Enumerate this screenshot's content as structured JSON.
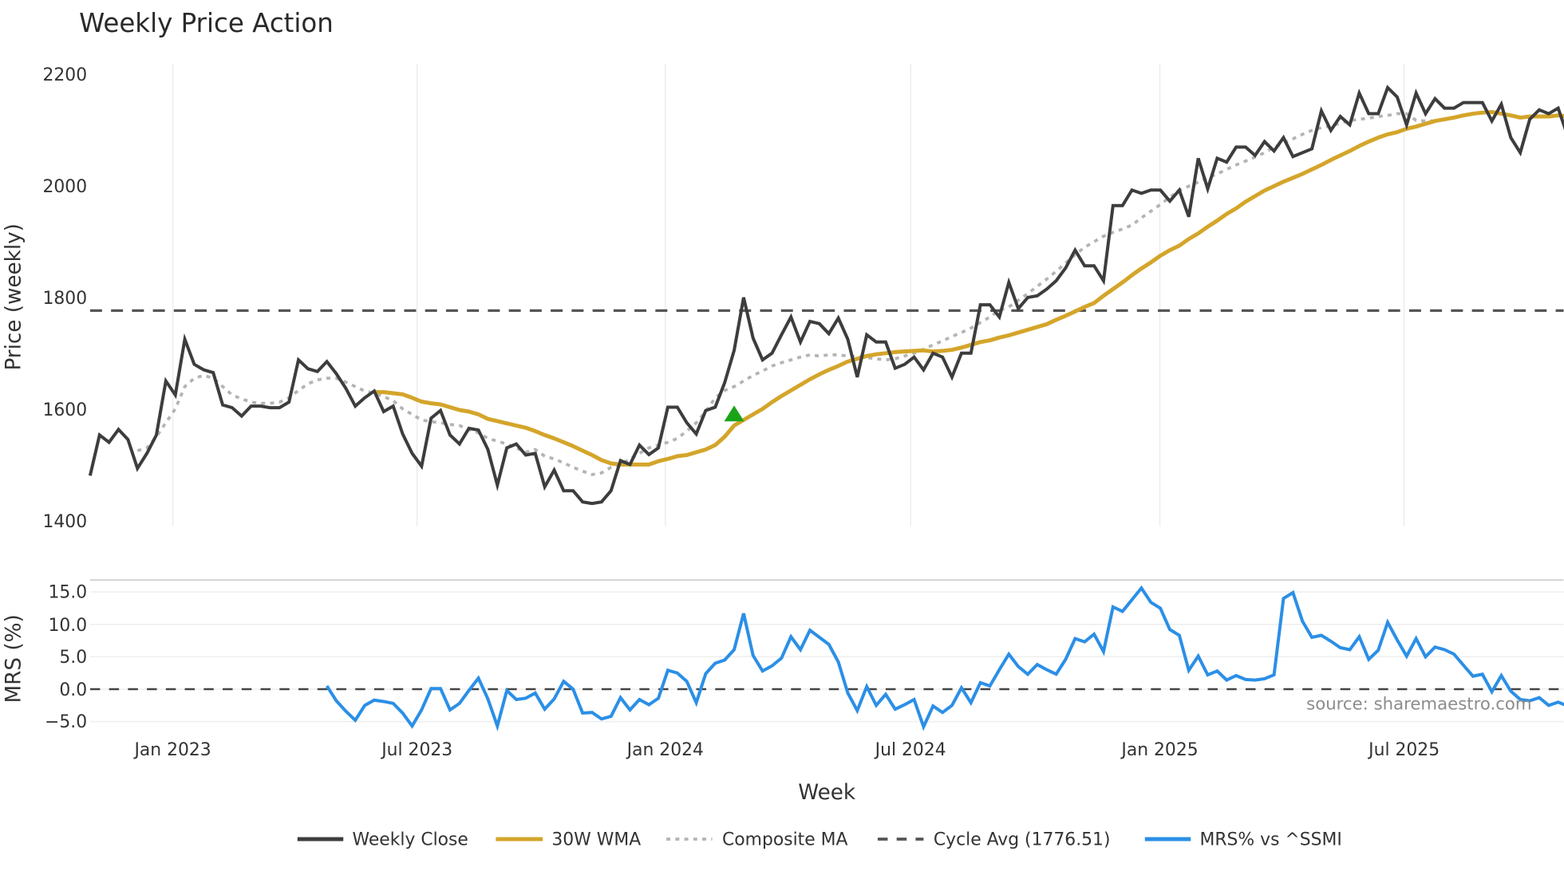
{
  "title": "Weekly Price Action",
  "colors": {
    "close": "#3d3d3d",
    "wma": "#d4a52a",
    "composite": "#b4b4b4",
    "cycle": "#555555",
    "mrs": "#2b8fe6",
    "signal": "#1aa31a",
    "grid": "#ececf2"
  },
  "top_panel": {
    "ylabel": "Price (weekly)",
    "yticks": [
      "2200",
      "2000",
      "1800",
      "1600",
      "1400"
    ]
  },
  "bottom_panel": {
    "ylabel": "MRS (%)",
    "yticks": [
      "15.0",
      "10.0",
      "5.0",
      "0.0",
      "−5.0"
    ]
  },
  "xaxis": {
    "label": "Week",
    "ticks": [
      "Jan 2023",
      "Jul 2023",
      "Jan 2024",
      "Jul 2024",
      "Jan 2025",
      "Jul 2025"
    ]
  },
  "source": "source: sharemaestro.com",
  "legend": [
    {
      "label": "Weekly Close",
      "style": "solid",
      "color": "#3d3d3d"
    },
    {
      "label": "30W WMA",
      "style": "solid",
      "color": "#d4a52a"
    },
    {
      "label": "Composite MA",
      "style": "dotted",
      "color": "#b4b4b4"
    },
    {
      "label": "Cycle Avg (1776.51)",
      "style": "dashed",
      "color": "#555555"
    },
    {
      "label": "MRS% vs ^SSMI",
      "style": "solid",
      "color": "#2b8fe6"
    }
  ],
  "chart_data": [
    {
      "type": "line",
      "title": "Weekly Price Action",
      "xlabel": "Week",
      "ylabel": "Price (weekly)",
      "ylim": [
        1400,
        2200
      ],
      "grid": "vertical",
      "x_ticks": [
        "Jan 2023",
        "Jul 2023",
        "Jan 2024",
        "Jul 2024",
        "Jan 2025",
        "Jul 2025"
      ],
      "x_start": "Nov 2022",
      "x_end": "Oct 2025",
      "series": [
        {
          "name": "Weekly Close",
          "values": [
            1480,
            1553,
            1540,
            1563,
            1545,
            1493,
            1520,
            1553,
            1650,
            1625,
            1725,
            1680,
            1670,
            1665,
            1607,
            1602,
            1587,
            1605,
            1605,
            1602,
            1602,
            1612,
            1688,
            1672,
            1667,
            1685,
            1663,
            1637,
            1605,
            1620,
            1632,
            1595,
            1605,
            1555,
            1520,
            1497,
            1583,
            1597,
            1553,
            1537,
            1565,
            1562,
            1527,
            1463,
            1530,
            1537,
            1517,
            1520,
            1460,
            1490,
            1453,
            1453,
            1433,
            1430,
            1433,
            1453,
            1507,
            1500,
            1535,
            1518,
            1530,
            1603,
            1603,
            1575,
            1555,
            1597,
            1603,
            1647,
            1705,
            1800,
            1727,
            1688,
            1700,
            1733,
            1765,
            1720,
            1757,
            1753,
            1735,
            1763,
            1725,
            1657,
            1733,
            1720,
            1720,
            1673,
            1680,
            1693,
            1670,
            1700,
            1693,
            1657,
            1700,
            1700,
            1787,
            1787,
            1765,
            1827,
            1780,
            1800,
            1803,
            1815,
            1830,
            1853,
            1885,
            1857,
            1857,
            1830,
            1965,
            1965,
            1993,
            1987,
            1993,
            1993,
            1973,
            1993,
            1945,
            2050,
            1995,
            2050,
            2043,
            2070,
            2070,
            2055,
            2080,
            2063,
            2087,
            2053,
            2060,
            2067,
            2135,
            2100,
            2125,
            2110,
            2167,
            2130,
            2130,
            2177,
            2160,
            2110,
            2167,
            2130,
            2157,
            2140,
            2140,
            2150,
            2150,
            2150,
            2117,
            2147,
            2087,
            2060,
            2120,
            2137,
            2130,
            2140,
            2090
          ]
        },
        {
          "name": "30W WMA",
          "start_index": 30,
          "values": [
            1630,
            1630,
            1628,
            1626,
            1620,
            1613,
            1610,
            1608,
            1603,
            1598,
            1595,
            1590,
            1582,
            1578,
            1574,
            1570,
            1566,
            1560,
            1553,
            1547,
            1540,
            1533,
            1525,
            1517,
            1508,
            1502,
            1500,
            1500,
            1500,
            1500,
            1506,
            1510,
            1515,
            1517,
            1522,
            1527,
            1535,
            1550,
            1570,
            1580,
            1590,
            1600,
            1612,
            1623,
            1633,
            1643,
            1653,
            1662,
            1670,
            1677,
            1685,
            1690,
            1695,
            1698,
            1700,
            1702,
            1703,
            1704,
            1705,
            1703,
            1704,
            1706,
            1710,
            1715,
            1720,
            1723,
            1728,
            1732,
            1737,
            1742,
            1747,
            1752,
            1760,
            1767,
            1775,
            1783,
            1790,
            1803,
            1815,
            1827,
            1840,
            1852,
            1863,
            1875,
            1885,
            1893,
            1905,
            1915,
            1927,
            1938,
            1950,
            1960,
            1972,
            1982,
            1992,
            2000,
            2008,
            2015,
            2022,
            2030,
            2038,
            2047,
            2055,
            2063,
            2072,
            2080,
            2087,
            2093,
            2097,
            2103,
            2107,
            2112,
            2117,
            2120,
            2123,
            2127,
            2130,
            2132,
            2133,
            2130,
            2127,
            2123,
            2125,
            2125,
            2125,
            2127,
            2125
          ]
        },
        {
          "name": "Composite MA",
          "start_index": 5,
          "values": [
            1525,
            1530,
            1550,
            1575,
            1600,
            1640,
            1655,
            1660,
            1655,
            1640,
            1625,
            1618,
            1612,
            1610,
            1610,
            1612,
            1620,
            1633,
            1645,
            1652,
            1655,
            1655,
            1648,
            1640,
            1632,
            1628,
            1622,
            1615,
            1600,
            1590,
            1580,
            1577,
            1575,
            1572,
            1570,
            1563,
            1557,
            1547,
            1542,
            1537,
            1530,
            1522,
            1527,
            1515,
            1510,
            1503,
            1495,
            1488,
            1482,
            1485,
            1495,
            1500,
            1510,
            1520,
            1530,
            1535,
            1540,
            1547,
            1560,
            1575,
            1595,
            1620,
            1633,
            1640,
            1650,
            1660,
            1668,
            1677,
            1683,
            1688,
            1693,
            1697,
            1695,
            1697,
            1697,
            1695,
            1694,
            1692,
            1690,
            1688,
            1690,
            1695,
            1700,
            1707,
            1715,
            1722,
            1730,
            1737,
            1745,
            1755,
            1765,
            1777,
            1783,
            1795,
            1807,
            1820,
            1833,
            1847,
            1862,
            1877,
            1890,
            1900,
            1910,
            1917,
            1923,
            1930,
            1943,
            1955,
            1967,
            1980,
            1992,
            2000,
            2007,
            2015,
            2022,
            2030,
            2038,
            2045,
            2052,
            2060,
            2070,
            2077,
            2085,
            2093,
            2100,
            2105,
            2108,
            2113,
            2118,
            2120,
            2122,
            2125,
            2127,
            2130,
            2130,
            2118,
            2117,
            2117,
            2120,
            2122
          ]
        },
        {
          "name": "Cycle Avg (1776.51)",
          "constant": 1776.51
        }
      ],
      "annotations": [
        {
          "type": "marker",
          "shape": "triangle-up",
          "color": "#1aa31a",
          "index": 68,
          "value": 1590
        }
      ]
    },
    {
      "type": "line",
      "title": "",
      "xlabel": "Week",
      "ylabel": "MRS (%)",
      "ylim": [
        -6.5,
        17
      ],
      "series": [
        {
          "name": "MRS% vs ^SSMI",
          "start_index": 25,
          "values": [
            0.5,
            -1.8,
            -3.4,
            -4.8,
            -2.5,
            -1.7,
            -1.9,
            -2.2,
            -3.7,
            -5.7,
            -3.2,
            0.1,
            0.1,
            -3.2,
            -2.2,
            -0.2,
            1.7,
            -1.5,
            -5.7,
            -0.2,
            -1.6,
            -1.4,
            -0.6,
            -3.1,
            -1.5,
            1.2,
            0.0,
            -3.7,
            -3.6,
            -4.6,
            -4.2,
            -1.3,
            -3.2,
            -1.6,
            -2.4,
            -1.4,
            2.9,
            2.5,
            1.2,
            -2.1,
            2.4,
            4.0,
            4.5,
            6.1,
            11.7,
            5.2,
            2.8,
            3.6,
            4.8,
            8.1,
            6.1,
            9.1,
            8.0,
            6.9,
            4.2,
            -0.6,
            -3.3,
            0.4,
            -2.5,
            -0.8,
            -3.1,
            -2.4,
            -1.6,
            -5.8,
            -2.6,
            -3.6,
            -2.5,
            0.2,
            -2.1,
            1.0,
            0.5,
            3.0,
            5.4,
            3.5,
            2.3,
            3.8,
            3.0,
            2.3,
            4.6,
            7.8,
            7.3,
            8.5,
            5.8,
            12.7,
            12.0,
            13.8,
            15.6,
            13.4,
            12.5,
            9.2,
            8.3,
            2.9,
            5.1,
            2.2,
            2.8,
            1.4,
            2.1,
            1.5,
            1.4,
            1.6,
            2.2,
            14.0,
            14.9,
            10.5,
            8.0,
            8.3,
            7.4,
            6.4,
            6.1,
            8.1,
            4.6,
            6.0,
            10.3,
            7.6,
            5.1,
            7.8,
            5.0,
            6.5,
            6.1,
            5.4,
            3.7,
            2.0,
            2.3,
            -0.4,
            2.1,
            -0.3,
            -1.6,
            -1.8,
            -1.3,
            -2.5,
            -2.0,
            -2.6
          ]
        }
      ],
      "reference_lines": [
        {
          "y": 0,
          "style": "dashed"
        }
      ]
    }
  ]
}
